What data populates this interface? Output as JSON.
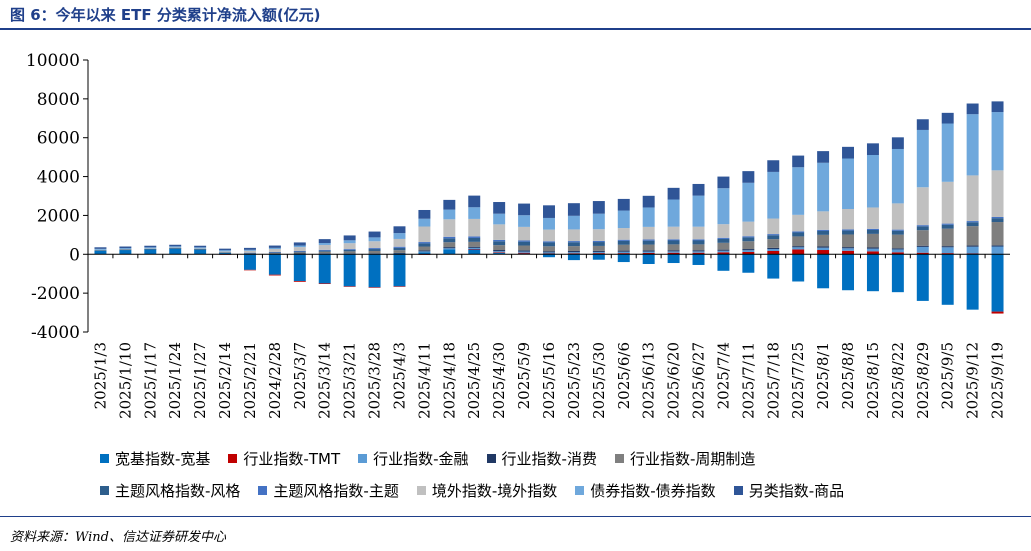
{
  "figure": {
    "title": "图 6：今年以来 ETF 分类累计净流入额(亿元)",
    "source": "资料来源：Wind、信达证券研发中心"
  },
  "chart_data": {
    "type": "stacked-bar",
    "title": "今年以来 ETF 分类累计净流入额(亿元)",
    "ylabel": "亿元",
    "ylim": [
      -4000,
      10000
    ],
    "yticks": [
      -4000,
      -2000,
      0,
      2000,
      4000,
      6000,
      8000,
      10000
    ],
    "legend_position": "bottom",
    "categories": [
      "2025/1/3",
      "2025/1/10",
      "2025/1/17",
      "2025/1/24",
      "2025/1/27",
      "2025/2/14",
      "2025/2/21",
      "2024/2/28",
      "2025/3/7",
      "2025/3/14",
      "2025/3/21",
      "2025/3/28",
      "2025/4/3",
      "2025/4/11",
      "2025/4/18",
      "2025/4/25",
      "2025/4/30",
      "2025/5/9",
      "2025/5/16",
      "2025/5/23",
      "2025/5/30",
      "2025/6/6",
      "2025/6/13",
      "2025/6/20",
      "2025/6/27",
      "2025/7/4",
      "2025/7/11",
      "2025/7/18",
      "2025/7/25",
      "2025/8/1",
      "2025/8/8",
      "2025/8/15",
      "2025/8/22",
      "2025/8/29",
      "2025/9/5",
      "2025/9/12",
      "2025/9/19"
    ],
    "x_tick_labels": [
      "2025/1/3",
      "2025/1/10",
      "2025/1/17",
      "2025/1/24",
      "2025/1/27",
      "2025/2/14",
      "2025/2/21",
      "2024/2/28",
      "2025/3/7",
      "2025/3/14",
      "2025/3/21",
      "2025/3/28",
      "2025/4/3",
      "2025/4/11",
      "2025/4/18",
      "2025/4/25",
      "2025/4/30",
      "2025/5/9",
      "2025/5/16",
      "2025/5/23",
      "2025/5/30",
      "2025/6/6",
      "2025/6/13",
      "2025/6/20",
      "2025/6/27",
      "2025/7/4",
      "2025/7/11",
      "2025/7/18",
      "2025/7/25",
      "2025/8/1",
      "2025/8/8",
      "2025/8/15",
      "2025/8/22",
      "2025/8/29",
      "2025/9/5",
      "2025/9/12",
      "2025/9/19"
    ],
    "series": [
      {
        "name": "宽基指数-宽基",
        "color": "#0070c0",
        "values": [
          200,
          230,
          260,
          300,
          250,
          80,
          -800,
          -1050,
          -1380,
          -1500,
          -1650,
          -1700,
          -1650,
          100,
          260,
          250,
          70,
          40,
          -150,
          -300,
          -280,
          -400,
          -500,
          -450,
          -550,
          -850,
          -950,
          -1250,
          -1400,
          -1750,
          -1850,
          -1900,
          -1950,
          -2400,
          -2600,
          -2850,
          -2950
        ]
      },
      {
        "name": "行业指数-TMT",
        "color": "#c00000",
        "values": [
          0,
          0,
          0,
          0,
          0,
          -20,
          -20,
          -40,
          -40,
          -30,
          -20,
          -20,
          -20,
          -30,
          0,
          20,
          30,
          40,
          40,
          50,
          60,
          60,
          70,
          80,
          80,
          100,
          120,
          170,
          250,
          220,
          180,
          150,
          100,
          80,
          60,
          40,
          -100
        ]
      },
      {
        "name": "行业指数-金融",
        "color": "#5b9bd5",
        "values": [
          0,
          0,
          0,
          0,
          0,
          0,
          10,
          20,
          30,
          30,
          30,
          30,
          40,
          50,
          50,
          60,
          60,
          60,
          60,
          60,
          60,
          70,
          70,
          70,
          70,
          80,
          90,
          100,
          110,
          120,
          130,
          140,
          150,
          300,
          300,
          350,
          400
        ]
      },
      {
        "name": "行业指数-消费",
        "color": "#203864",
        "values": [
          0,
          0,
          0,
          0,
          0,
          0,
          10,
          10,
          10,
          20,
          20,
          20,
          30,
          50,
          60,
          60,
          60,
          60,
          60,
          60,
          60,
          60,
          60,
          60,
          60,
          60,
          60,
          60,
          60,
          60,
          60,
          60,
          60,
          60,
          60,
          60,
          60
        ]
      },
      {
        "name": "行业指数-周期制造",
        "color": "#7f7f7f",
        "values": [
          10,
          10,
          10,
          10,
          10,
          10,
          30,
          40,
          60,
          80,
          100,
          120,
          140,
          200,
          250,
          250,
          250,
          250,
          250,
          250,
          250,
          300,
          300,
          300,
          300,
          350,
          400,
          450,
          500,
          600,
          650,
          700,
          700,
          800,
          900,
          1000,
          1200
        ]
      },
      {
        "name": "主题风格指数-风格",
        "color": "#2e5e8c",
        "values": [
          10,
          10,
          10,
          10,
          10,
          10,
          20,
          30,
          40,
          60,
          80,
          100,
          120,
          160,
          200,
          200,
          200,
          200,
          200,
          200,
          200,
          200,
          200,
          200,
          200,
          200,
          200,
          200,
          200,
          200,
          200,
          200,
          200,
          200,
          200,
          200,
          200
        ]
      },
      {
        "name": "主题风格指数-主题",
        "color": "#4472c4",
        "values": [
          0,
          0,
          0,
          0,
          0,
          0,
          10,
          20,
          30,
          40,
          40,
          50,
          60,
          70,
          80,
          80,
          70,
          60,
          60,
          60,
          60,
          60,
          60,
          60,
          60,
          60,
          60,
          60,
          60,
          60,
          60,
          60,
          60,
          60,
          60,
          60,
          60
        ]
      },
      {
        "name": "境外指数-境外指数",
        "color": "#c0c0c0",
        "values": [
          10,
          20,
          20,
          30,
          30,
          50,
          100,
          150,
          200,
          250,
          300,
          350,
          400,
          800,
          900,
          900,
          800,
          700,
          600,
          600,
          600,
          600,
          650,
          650,
          650,
          700,
          750,
          800,
          850,
          950,
          1050,
          1100,
          1350,
          1950,
          2150,
          2350,
          2400
        ]
      },
      {
        "name": "债券指数-债券指数",
        "color": "#6fa8dc",
        "values": [
          50,
          50,
          60,
          60,
          60,
          60,
          50,
          60,
          80,
          100,
          150,
          200,
          300,
          400,
          500,
          600,
          550,
          600,
          600,
          700,
          800,
          900,
          1000,
          1400,
          1600,
          1850,
          2000,
          2400,
          2450,
          2500,
          2600,
          2700,
          2800,
          2950,
          3000,
          3150,
          3000
        ]
      },
      {
        "name": "另类指数-商品",
        "color": "#2f5597",
        "values": [
          80,
          80,
          80,
          80,
          80,
          80,
          100,
          120,
          160,
          200,
          250,
          300,
          350,
          450,
          500,
          600,
          600,
          600,
          650,
          650,
          650,
          600,
          600,
          600,
          600,
          600,
          600,
          600,
          600,
          600,
          600,
          600,
          600,
          550,
          550,
          550,
          550
        ]
      }
    ]
  },
  "legend": {
    "rows": [
      [
        "宽基指数-宽基",
        "行业指数-TMT",
        "行业指数-金融",
        "行业指数-消费",
        "行业指数-周期制造"
      ],
      [
        "主题风格指数-风格",
        "主题风格指数-主题",
        "境外指数-境外指数",
        "债券指数-债券指数",
        "另类指数-商品"
      ]
    ]
  }
}
